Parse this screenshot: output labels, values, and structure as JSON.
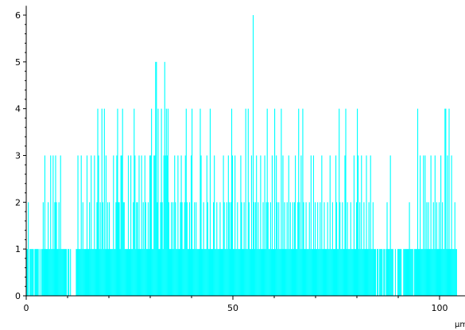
{
  "chart_data": {
    "type": "bar",
    "title": "",
    "xlabel": "μm",
    "ylabel": "",
    "xlim": [
      0,
      107
    ],
    "ylim": [
      0,
      6.2
    ],
    "x_ticks": [
      0,
      50,
      100
    ],
    "y_ticks": [
      0,
      1,
      2,
      3,
      4,
      5,
      6
    ],
    "grid": false,
    "bar_color": "#00ffff",
    "axis_color": "#000000",
    "bin_width": 0.2,
    "x_start": 0,
    "values": [
      1,
      1,
      2,
      0,
      1,
      1,
      1,
      1,
      1,
      0,
      1,
      1,
      1,
      1,
      1,
      0,
      1,
      0,
      1,
      1,
      2,
      1,
      3,
      1,
      1,
      1,
      2,
      1,
      1,
      3,
      1,
      1,
      3,
      1,
      2,
      3,
      2,
      1,
      1,
      2,
      1,
      3,
      1,
      1,
      1,
      1,
      1,
      1,
      1,
      0,
      1,
      1,
      0,
      1,
      0,
      0,
      0,
      0,
      0,
      0,
      1,
      1,
      3,
      1,
      1,
      1,
      3,
      1,
      2,
      1,
      1,
      1,
      1,
      3,
      1,
      1,
      2,
      1,
      3,
      1,
      1,
      1,
      3,
      1,
      1,
      2,
      4,
      3,
      1,
      2,
      1,
      4,
      2,
      1,
      4,
      1,
      3,
      1,
      2,
      1,
      2,
      1,
      1,
      1,
      1,
      3,
      1,
      1,
      2,
      3,
      4,
      2,
      2,
      1,
      3,
      3,
      4,
      2,
      2,
      1,
      1,
      1,
      1,
      3,
      1,
      1,
      3,
      1,
      1,
      2,
      4,
      3,
      1,
      2,
      2,
      1,
      3,
      1,
      1,
      3,
      1,
      2,
      1,
      3,
      2,
      1,
      1,
      2,
      1,
      3,
      3,
      4,
      1,
      1,
      3,
      3,
      5,
      5,
      2,
      4,
      1,
      1,
      2,
      4,
      2,
      1,
      3,
      5,
      3,
      4,
      3,
      4,
      2,
      1,
      1,
      2,
      1,
      2,
      1,
      3,
      2,
      1,
      1,
      3,
      1,
      1,
      2,
      3,
      2,
      1,
      1,
      2,
      3,
      4,
      2,
      1,
      1,
      2,
      1,
      3,
      4,
      1,
      1,
      2,
      1,
      2,
      1,
      1,
      1,
      1,
      4,
      3,
      1,
      1,
      2,
      1,
      1,
      1,
      3,
      2,
      1,
      1,
      4,
      1,
      1,
      1,
      2,
      3,
      1,
      1,
      2,
      1,
      1,
      1,
      2,
      1,
      1,
      1,
      3,
      2,
      1,
      1,
      2,
      1,
      3,
      2,
      1,
      2,
      4,
      3,
      1,
      1,
      3,
      1,
      1,
      2,
      1,
      1,
      1,
      3,
      2,
      1,
      1,
      2,
      1,
      4,
      1,
      1,
      4,
      2,
      1,
      1,
      3,
      1,
      6,
      2,
      1,
      2,
      3,
      1,
      2,
      1,
      1,
      3,
      1,
      1,
      2,
      1,
      3,
      1,
      2,
      4,
      2,
      1,
      1,
      2,
      1,
      3,
      1,
      1,
      4,
      1,
      3,
      2,
      1,
      2,
      1,
      1,
      4,
      1,
      3,
      1,
      2,
      1,
      1,
      2,
      1,
      3,
      1,
      2,
      1,
      1,
      2,
      1,
      2,
      3,
      1,
      1,
      2,
      4,
      2,
      1,
      3,
      1,
      4,
      2,
      1,
      1,
      2,
      1,
      1,
      1,
      2,
      1,
      3,
      1,
      1,
      3,
      1,
      2,
      1,
      1,
      2,
      1,
      1,
      2,
      1,
      3,
      1,
      1,
      2,
      1,
      1,
      1,
      2,
      1,
      1,
      3,
      1,
      1,
      2,
      1,
      1,
      1,
      3,
      2,
      1,
      1,
      4,
      2,
      1,
      1,
      2,
      1,
      1,
      3,
      4,
      1,
      2,
      1,
      1,
      1,
      2,
      1,
      1,
      1,
      3,
      1,
      1,
      2,
      4,
      3,
      1,
      2,
      1,
      3,
      1,
      1,
      2,
      1,
      1,
      3,
      1,
      1,
      2,
      1,
      3,
      1,
      1,
      2,
      1,
      1,
      1,
      0,
      1,
      1,
      0,
      1,
      1,
      1,
      1,
      0,
      1,
      1,
      0,
      1,
      2,
      1,
      1,
      1,
      3,
      1,
      1,
      1,
      0,
      0,
      1,
      0,
      0,
      1,
      1,
      1,
      1,
      1,
      0,
      0,
      1,
      1,
      1,
      1,
      1,
      1,
      1,
      2,
      1,
      1,
      1,
      1,
      0,
      1,
      1,
      1,
      1,
      4,
      1,
      1,
      3,
      1,
      1,
      1,
      3,
      1,
      3,
      1,
      2,
      1,
      2,
      1,
      1,
      3,
      1,
      1,
      2,
      1,
      3,
      1,
      2,
      1,
      1,
      2,
      1,
      3,
      1,
      2,
      1,
      1,
      4,
      4,
      1,
      3,
      1,
      4,
      1,
      1,
      3,
      1,
      1,
      1,
      2,
      1,
      1
    ]
  }
}
